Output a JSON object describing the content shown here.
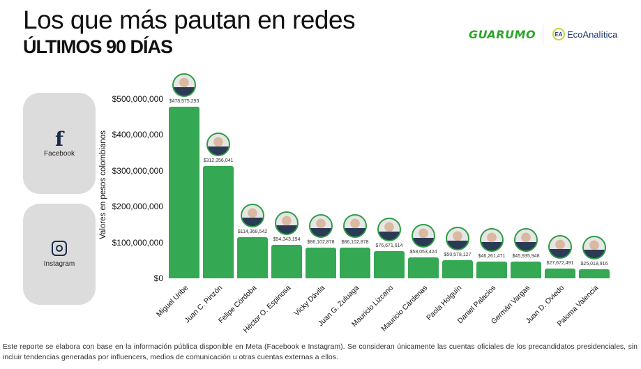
{
  "header": {
    "title": "Los que más pautan en redes",
    "subtitle": "ÚLTIMOS 90 DÍAS",
    "logo_guarumo": "GUARUMO",
    "logo_ecoanalitica": "EcoAnalítica"
  },
  "platforms": [
    {
      "label": "Facebook",
      "icon": "facebook-icon"
    },
    {
      "label": "Instagram",
      "icon": "instagram-icon"
    }
  ],
  "chart_data": {
    "type": "bar",
    "title": "Los que más pautan en redes",
    "ylabel": "Valores en pesos colombianos",
    "xlabel": "",
    "ylim": [
      0,
      500000000
    ],
    "yticks": [
      0,
      100000000,
      200000000,
      300000000,
      400000000,
      500000000
    ],
    "ytick_labels": [
      "$0",
      "$100,000,000",
      "$200,000,000",
      "$300,000,000",
      "$400,000,000",
      "$500,000,000"
    ],
    "categories": [
      "Miguel Uribe",
      "Juan C. Pinzón",
      "Felipe Córdoba",
      "Héctor O. Espinosa",
      "Vicky Dávila",
      "Juan G. Zuluaga",
      "Mauricio Lizcano",
      "Mauricio Cárdenas",
      "Paola Holguín",
      "Daniel Palacios",
      "Germán Vargas",
      "Juan D. Oviedo",
      "Paloma Valencia"
    ],
    "values": [
      478575293,
      312356041,
      114368542,
      94343194,
      86102878,
      86102878,
      76671614,
      58053424,
      50578127,
      46261471,
      45935948,
      27672491,
      25018916
    ],
    "data_labels": [
      "$478,575,293",
      "$312,356,041",
      "$114,368,542",
      "$94,343,194",
      "$86,102,878",
      "$86,102,878",
      "$76,671,614",
      "$58,053,424",
      "$50,578,127",
      "$46,261,471",
      "$45,935,948",
      "$27,672,491",
      "$25,018,916"
    ],
    "color": "#34a853",
    "grid": false
  },
  "footer": "Este reporte se elabora con base en la información pública disponible en Meta (Facebook e Instagram). Se consideran únicamente las cuentas oficiales de los precandidatos presidenciales, sin incluir tendencias generadas por influencers, medios de comunicación u otras cuentas externas a ellos."
}
